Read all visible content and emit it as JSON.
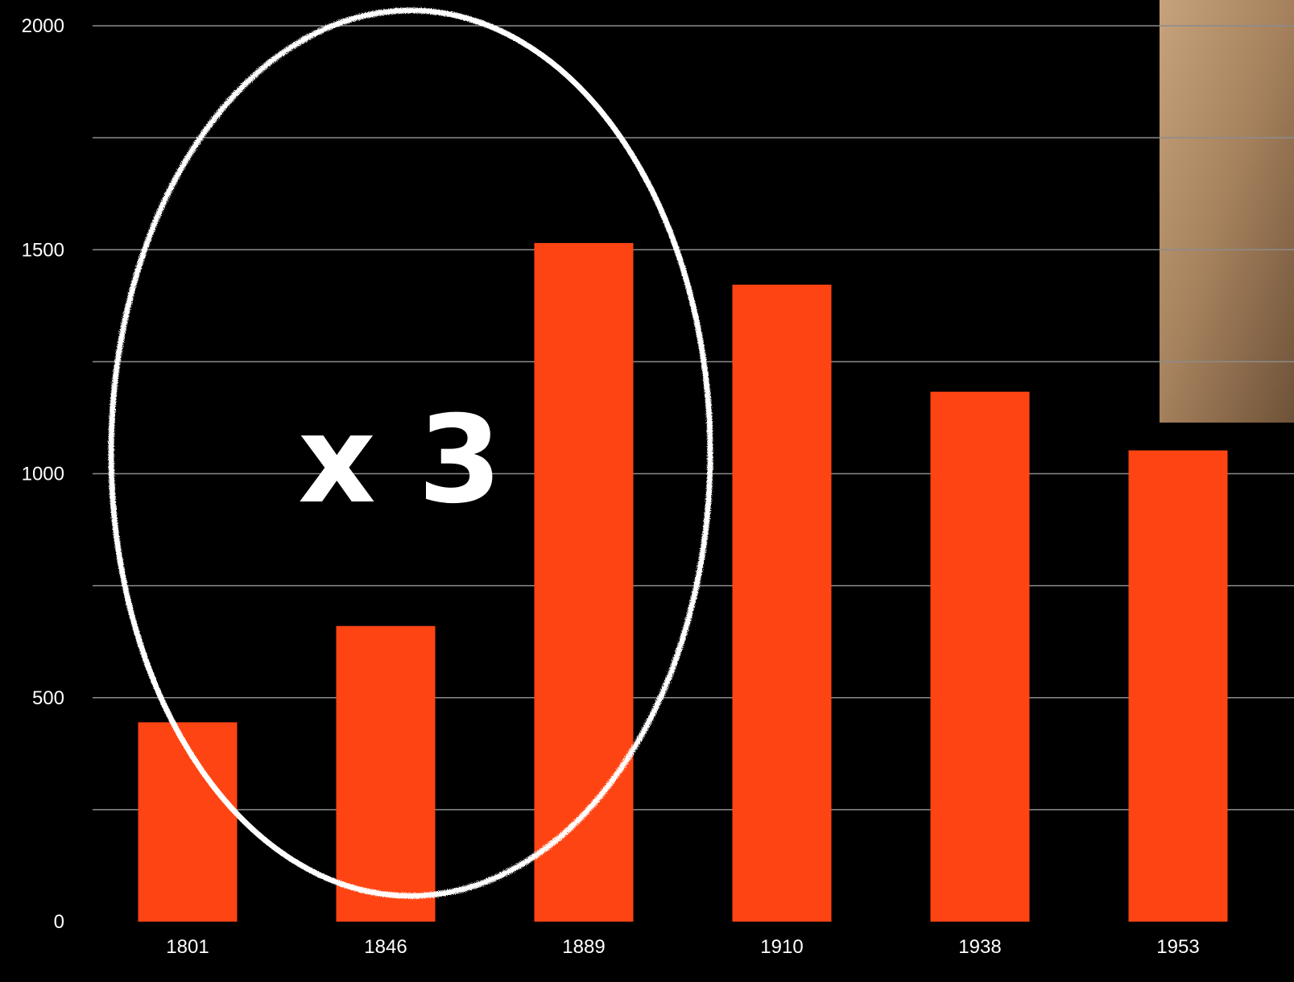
{
  "chart_data": {
    "type": "bar",
    "categories": [
      "1801",
      "1846",
      "1889",
      "1910",
      "1938",
      "1953"
    ],
    "values": [
      445,
      660,
      1515,
      1422,
      1183,
      1052
    ],
    "title": "",
    "xlabel": "",
    "ylabel": "",
    "ylim": [
      0,
      2000
    ],
    "y_ticks": [
      "0",
      "500",
      "1000",
      "1500",
      "2000"
    ],
    "grid": true,
    "bar_color": "#ff4413",
    "annotation": "x 3"
  },
  "colors": {
    "background": "#000000",
    "grid": "#8c8c8c",
    "text": "#ffffff",
    "photo": "#a4805c"
  }
}
